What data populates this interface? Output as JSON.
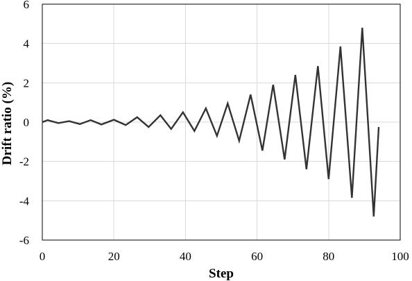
{
  "chart_data": {
    "type": "line",
    "title": "",
    "xlabel": "Step",
    "ylabel": "Drift ratio (%)",
    "xlim": [
      0,
      100
    ],
    "ylim": [
      -6,
      6
    ],
    "x_ticks": [
      "0",
      "20",
      "40",
      "60",
      "80",
      "100"
    ],
    "y_ticks": [
      "6",
      "4",
      "2",
      "0",
      "-2",
      "-4",
      "-6"
    ],
    "grid": true,
    "legend": "none",
    "series_color": "#333333",
    "series": [
      {
        "x": [
          0,
          1.5,
          4.5,
          7.5,
          10.5,
          13.5,
          16.5,
          20,
          23.3,
          26.5,
          29.7,
          33,
          36,
          39.3,
          42.5,
          45.7,
          48.8,
          51.8,
          55,
          58.2,
          61.5,
          64.5,
          67.7,
          70.7,
          73.8,
          77,
          80,
          83.3,
          86.5,
          89.4,
          92.6,
          94
        ],
        "y": [
          0,
          0.1,
          -0.05,
          0.05,
          -0.1,
          0.1,
          -0.12,
          0.12,
          -0.15,
          0.25,
          -0.25,
          0.35,
          -0.35,
          0.5,
          -0.45,
          0.7,
          -0.7,
          0.95,
          -0.95,
          1.4,
          -1.45,
          1.9,
          -1.9,
          2.4,
          -2.4,
          2.85,
          -2.9,
          3.85,
          -3.85,
          4.8,
          -4.8,
          -0.25
        ]
      }
    ]
  }
}
